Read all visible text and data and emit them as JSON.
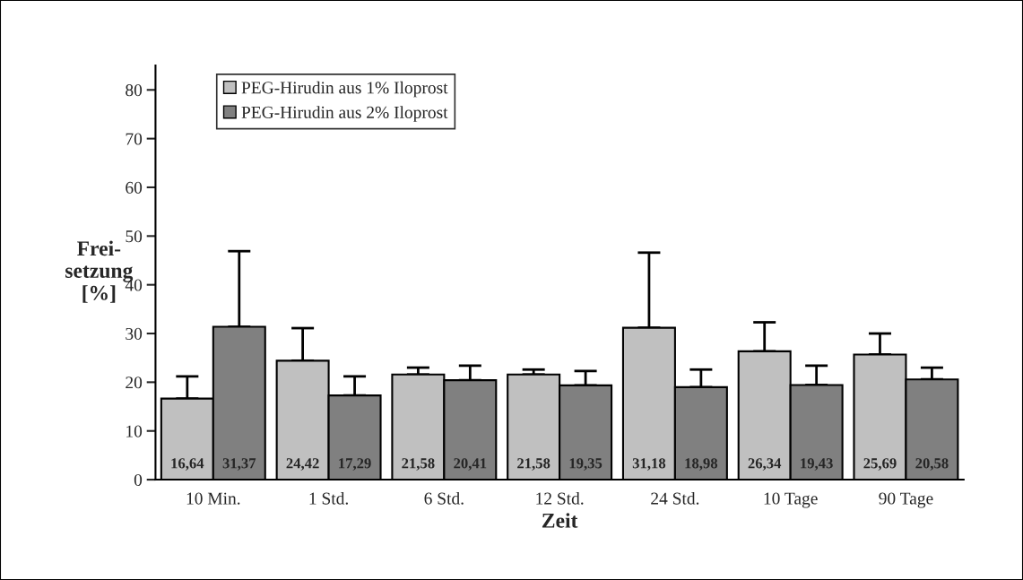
{
  "chart_data": {
    "type": "bar",
    "xlabel": "Zeit",
    "ylabel": "Frei-\nsetzung\n[%]",
    "categories": [
      "10 Min.",
      "1 Std.",
      "6 Std.",
      "12 Std.",
      "24 Std.",
      "10 Tage",
      "90 Tage"
    ],
    "series": [
      {
        "name": "PEG-Hirudin aus 1% Iloprost",
        "color": "#c0c0c0",
        "values": [
          16.64,
          24.42,
          21.58,
          21.58,
          31.18,
          26.34,
          25.69
        ],
        "errors": [
          [
            16.64,
            21.2
          ],
          [
            24.42,
            31.1
          ],
          [
            21.58,
            23.0
          ],
          [
            21.58,
            22.6
          ],
          [
            31.18,
            46.6
          ],
          [
            26.34,
            32.3
          ],
          [
            25.69,
            30.0
          ]
        ],
        "value_labels": [
          "16,64",
          "24,42",
          "21,58",
          "21,58",
          "31,18",
          "26,34",
          "25,69"
        ]
      },
      {
        "name": "PEG-Hirudin aus 2% Iloprost",
        "color": "#808080",
        "values": [
          31.37,
          17.29,
          20.41,
          19.35,
          18.98,
          19.43,
          20.58
        ],
        "errors": [
          [
            31.37,
            46.9
          ],
          [
            17.29,
            21.2
          ],
          [
            20.41,
            23.4
          ],
          [
            19.35,
            22.3
          ],
          [
            18.98,
            22.6
          ],
          [
            19.43,
            23.4
          ],
          [
            20.58,
            23.0
          ]
        ],
        "value_labels": [
          "31,37",
          "17,29",
          "20,41",
          "19,35",
          "18,98",
          "19,43",
          "20,58"
        ]
      }
    ],
    "ylim": [
      0,
      85
    ],
    "yticks": [
      0,
      10,
      20,
      30,
      40,
      50,
      60,
      70,
      80
    ],
    "grid": false,
    "legend": "top left"
  }
}
